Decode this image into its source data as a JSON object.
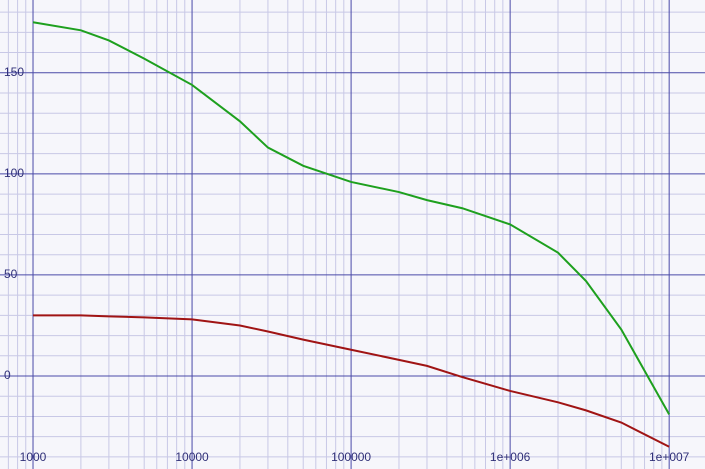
{
  "chart_data": {
    "type": "line",
    "log_x": true,
    "grid": true,
    "xlim": [
      620,
      16800000
    ],
    "ylim": [
      -46,
      186
    ],
    "xticks": [
      1000,
      10000,
      100000,
      {
        "value": 1000000,
        "label": "1e+006"
      },
      {
        "value": 10000000,
        "label": "1e+007"
      }
    ],
    "yticks": [
      0,
      50,
      100,
      150
    ],
    "xminorticks": [
      700,
      800,
      900,
      2000,
      3000,
      4000,
      5000,
      6000,
      7000,
      8000,
      9000,
      20000,
      30000,
      40000,
      50000,
      60000,
      70000,
      80000,
      90000,
      200000,
      300000,
      400000,
      500000,
      600000,
      700000,
      800000,
      900000,
      2000000,
      3000000,
      4000000,
      5000000,
      6000000,
      7000000,
      8000000,
      9000000
    ],
    "yminorticks": [
      -40,
      -30,
      -20,
      -10,
      10,
      20,
      30,
      40,
      60,
      70,
      80,
      90,
      110,
      120,
      130,
      140,
      160,
      170,
      180
    ],
    "x": [
      1000,
      2000,
      3000,
      5000,
      10000,
      20000,
      30000,
      50000,
      100000,
      200000,
      300000,
      500000,
      1000000,
      2000000,
      3000000,
      5000000,
      10000000
    ],
    "series": [
      {
        "color": "#1ea01e",
        "values": [
          175,
          171,
          166,
          157,
          144,
          126,
          113,
          104,
          96,
          91,
          87,
          83,
          75,
          61,
          47,
          23,
          -19
        ]
      },
      {
        "color": "#a01414",
        "values": [
          30,
          30,
          29.5,
          29,
          28,
          25,
          22,
          18,
          13,
          8,
          5,
          -0.5,
          -7.4,
          -13,
          -17,
          -23,
          -35
        ]
      }
    ]
  }
}
